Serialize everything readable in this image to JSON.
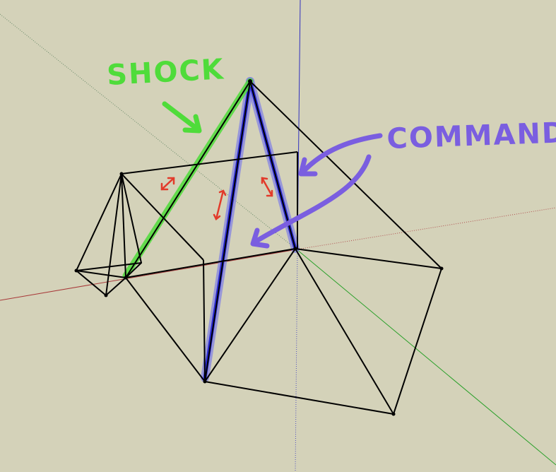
{
  "labels": {
    "shock": "SHOCK",
    "commands": "COMMANDS"
  },
  "colors": {
    "background": "#d4d2b9",
    "wireframe": "#000000",
    "shock": "#4fdc3a",
    "commands_highlight": "#3a3ad0",
    "commands_glow": "#7f7fe6",
    "commands_annotation": "#7a5ee0",
    "motion_arrows": "#e23a2a",
    "axis_red": "#b03030",
    "axis_green": "#2aa02a",
    "axis_blue": "#3030c0"
  },
  "icons": {
    "motion_arrow": "double-headed-arrow-icon"
  }
}
